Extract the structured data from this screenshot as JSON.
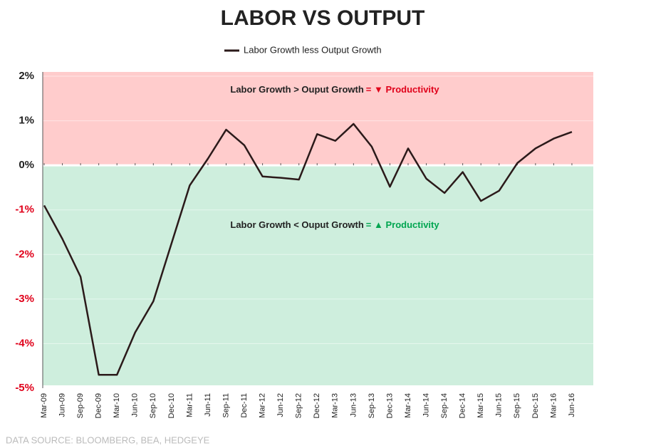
{
  "chart_data": {
    "type": "line",
    "title": "LABOR VS OUTPUT",
    "categories": [
      "Mar-09",
      "Jun-09",
      "Sep-09",
      "Dec-09",
      "Mar-10",
      "Jun-10",
      "Sep-10",
      "Dec-10",
      "Mar-11",
      "Jun-11",
      "Sep-11",
      "Dec-11",
      "Mar-12",
      "Jun-12",
      "Sep-12",
      "Dec-12",
      "Mar-13",
      "Jun-13",
      "Sep-13",
      "Dec-13",
      "Mar-14",
      "Jun-14",
      "Sep-14",
      "Dec-14",
      "Mar-15",
      "Jun-15",
      "Sep-15",
      "Dec-15",
      "Mar-16",
      "Jun-16"
    ],
    "series": [
      {
        "name": "Labor Growth less Output Growth",
        "color": "#2b1a1a",
        "values": [
          -0.9,
          -1.65,
          -2.5,
          -4.7,
          -4.7,
          -3.75,
          -3.05,
          -1.75,
          -0.45,
          0.15,
          0.8,
          0.45,
          -0.25,
          -0.28,
          -0.32,
          0.7,
          0.55,
          0.93,
          0.42,
          -0.48,
          0.38,
          -0.3,
          -0.62,
          -0.15,
          -0.8,
          -0.57,
          0.05,
          0.38,
          0.6,
          0.75
        ]
      }
    ],
    "ylim": [
      -5,
      2
    ],
    "yticks": [
      {
        "value": -5,
        "label": "-5%"
      },
      {
        "value": -4,
        "label": "-4%"
      },
      {
        "value": -3,
        "label": "-3%"
      },
      {
        "value": -2,
        "label": "-2%"
      },
      {
        "value": -1,
        "label": "-1%"
      },
      {
        "value": 0,
        "label": "0%"
      },
      {
        "value": 1,
        "label": "1%"
      },
      {
        "value": 2,
        "label": "2%"
      }
    ],
    "grid": true,
    "above_zero_color": "#ffcccc",
    "below_zero_color": "#ceeedd",
    "annotations": [
      {
        "parts": [
          {
            "text": "Labor Growth > Ouput Growth",
            "color": "#222222"
          },
          {
            "text": "= ▼ Productivity",
            "color": "#e0001a"
          }
        ]
      },
      {
        "parts": [
          {
            "text": "Labor Growth < Ouput Growth",
            "color": "#222222"
          },
          {
            "text": "= ▲ Productivity",
            "color": "#00a550"
          }
        ]
      }
    ],
    "source": "DATA SOURCE:  BLOOMBERG, BEA, HEDGEYE"
  }
}
